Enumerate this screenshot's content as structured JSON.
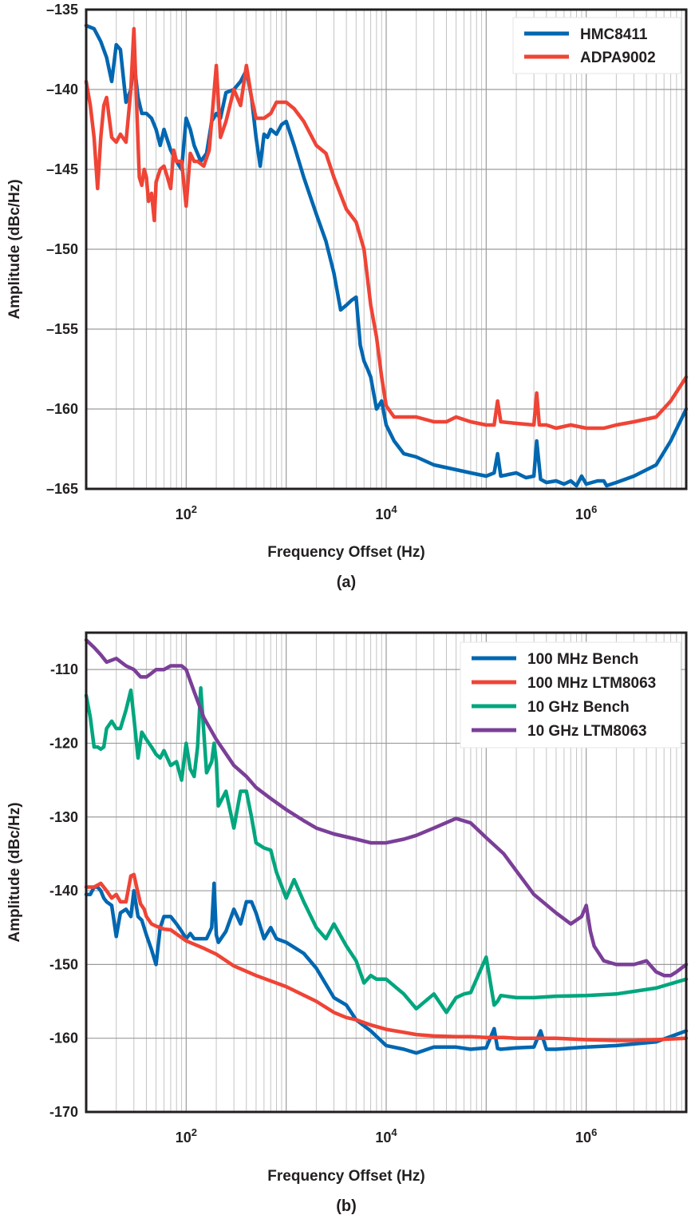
{
  "chart_data": [
    {
      "type": "line",
      "panel_label": "(a)",
      "xlabel": "Frequency Offset (Hz)",
      "ylabel": "Amplitude (dBc/Hz)",
      "xscale": "log",
      "xlim": [
        10,
        10000000
      ],
      "ylim": [
        -165,
        -135
      ],
      "yticks": [
        -135,
        -140,
        -145,
        -150,
        -155,
        -160,
        -165
      ],
      "ytick_labels": [
        "–135",
        "–140",
        "–145",
        "–150",
        "–155",
        "–160",
        "–165"
      ],
      "xticks": [
        {
          "value": 100,
          "base": "10",
          "exp": "2"
        },
        {
          "value": 10000,
          "base": "10",
          "exp": "4"
        },
        {
          "value": 1000000,
          "base": "10",
          "exp": "6"
        }
      ],
      "grid": true,
      "legend_position": "top-right",
      "series": [
        {
          "name": "HMC8411",
          "color": "#0067b1",
          "x": [
            10,
            12,
            14,
            16,
            18,
            20,
            22,
            25,
            28,
            30,
            33,
            36,
            40,
            45,
            50,
            55,
            60,
            70,
            80,
            90,
            100,
            110,
            120,
            140,
            160,
            180,
            200,
            220,
            250,
            300,
            350,
            400,
            450,
            500,
            550,
            600,
            650,
            700,
            800,
            900,
            1000,
            1200,
            1500,
            2000,
            2500,
            3000,
            3500,
            4000,
            4500,
            5000,
            5500,
            6000,
            6500,
            7000,
            8000,
            9000,
            10000,
            12000,
            15000,
            20000,
            30000,
            50000,
            70000,
            100000,
            120000,
            130000,
            140000,
            200000,
            250000,
            300000,
            320000,
            350000,
            400000,
            500000,
            600000,
            700000,
            800000,
            900000,
            1000000,
            1300000,
            1500000,
            1600000,
            2000000,
            3000000,
            5000000,
            7000000,
            10000000
          ],
          "y": [
            -136,
            -136.2,
            -137,
            -138,
            -139.5,
            -137.2,
            -137.5,
            -140.8,
            -140,
            -138.2,
            -140.5,
            -141.5,
            -141.5,
            -141.8,
            -142.5,
            -143.5,
            -142.5,
            -143.8,
            -144.5,
            -145,
            -141.8,
            -142.5,
            -143.5,
            -144.5,
            -144,
            -142,
            -141.5,
            -141.8,
            -140.2,
            -140,
            -139.5,
            -138.8,
            -140.5,
            -143,
            -144.8,
            -142.8,
            -143,
            -142.5,
            -142.8,
            -142.2,
            -142,
            -143.5,
            -145.5,
            -147.8,
            -149.5,
            -151.5,
            -153.8,
            -153.5,
            -153.2,
            -153,
            -156,
            -157,
            -157.5,
            -158,
            -160,
            -159.5,
            -161,
            -162,
            -162.8,
            -163,
            -163.5,
            -163.8,
            -164,
            -164.2,
            -164,
            -162.8,
            -164.2,
            -164,
            -164.3,
            -164.2,
            -162,
            -164.4,
            -164.6,
            -164.5,
            -164.7,
            -164.5,
            -164.8,
            -164.2,
            -164.7,
            -164.5,
            -164.5,
            -164.8,
            -164.6,
            -164.2,
            -163.5,
            -162,
            -160
          ]
        },
        {
          "name": "ADPA9002",
          "color": "#ef4436",
          "x": [
            10,
            11,
            12,
            13,
            14,
            15,
            16,
            18,
            20,
            22,
            25,
            28,
            30,
            32,
            34,
            36,
            38,
            40,
            42,
            45,
            48,
            50,
            55,
            60,
            65,
            70,
            75,
            80,
            90,
            100,
            110,
            120,
            130,
            150,
            170,
            200,
            220,
            250,
            300,
            350,
            400,
            450,
            500,
            600,
            700,
            800,
            1000,
            1200,
            1500,
            2000,
            2500,
            3000,
            4000,
            5000,
            6000,
            7000,
            8000,
            9000,
            10000,
            12000,
            15000,
            20000,
            30000,
            40000,
            50000,
            70000,
            100000,
            120000,
            130000,
            140000,
            200000,
            300000,
            320000,
            340000,
            400000,
            500000,
            700000,
            1000000,
            1500000,
            2000000,
            3000000,
            5000000,
            7000000,
            10000000
          ],
          "y": [
            -139.5,
            -141,
            -143,
            -146.2,
            -143,
            -141,
            -140.5,
            -143,
            -143.3,
            -142.8,
            -143.3,
            -140,
            -136.2,
            -141,
            -145.5,
            -146,
            -145,
            -145.5,
            -147,
            -146.5,
            -148.2,
            -145.8,
            -145,
            -144.8,
            -145.5,
            -146.2,
            -143.8,
            -144.5,
            -144.5,
            -147.3,
            -144,
            -144.5,
            -144.5,
            -144.8,
            -143.8,
            -138.5,
            -143,
            -142,
            -140,
            -141,
            -138.5,
            -140.5,
            -141.8,
            -141.8,
            -141.5,
            -140.8,
            -140.8,
            -141.2,
            -142,
            -143.5,
            -144,
            -145.5,
            -147.5,
            -148.3,
            -150,
            -153.5,
            -155.5,
            -158,
            -159.8,
            -160.5,
            -160.5,
            -160.5,
            -160.8,
            -160.8,
            -160.5,
            -160.8,
            -161,
            -161,
            -159.5,
            -160.8,
            -160.9,
            -161,
            -159,
            -161,
            -161,
            -161.2,
            -161,
            -161.2,
            -161.2,
            -161,
            -160.8,
            -160.5,
            -159.5,
            -158
          ]
        }
      ]
    },
    {
      "type": "line",
      "panel_label": "(b)",
      "xlabel": "Frequency Offset (Hz)",
      "ylabel": "Amplitude (dBc/Hz)",
      "xscale": "log",
      "xlim": [
        10,
        10000000
      ],
      "ylim": [
        -170,
        -105
      ],
      "yticks": [
        -110,
        -120,
        -130,
        -140,
        -150,
        -160,
        -170
      ],
      "ytick_labels": [
        "-110",
        "-120",
        "-130",
        "-140",
        "-150",
        "-160",
        "-170"
      ],
      "xticks": [
        {
          "value": 100,
          "base": "10",
          "exp": "2"
        },
        {
          "value": 10000,
          "base": "10",
          "exp": "4"
        },
        {
          "value": 1000000,
          "base": "10",
          "exp": "6"
        }
      ],
      "grid": true,
      "legend_position": "top-right",
      "series": [
        {
          "name": "100 MHz Bench",
          "color": "#0067b1",
          "x": [
            10,
            11,
            12,
            13,
            14,
            15,
            16,
            18,
            20,
            22,
            25,
            28,
            30,
            33,
            36,
            40,
            45,
            50,
            55,
            60,
            70,
            80,
            90,
            100,
            110,
            120,
            140,
            160,
            180,
            190,
            200,
            210,
            250,
            300,
            350,
            400,
            450,
            500,
            600,
            700,
            800,
            1000,
            1500,
            2000,
            3000,
            4000,
            5000,
            7000,
            10000,
            15000,
            20000,
            30000,
            50000,
            70000,
            100000,
            120000,
            130000,
            140000,
            200000,
            300000,
            350000,
            400000,
            500000,
            1000000,
            2000000,
            5000000,
            10000000
          ],
          "y": [
            -140.5,
            -140.5,
            -139.5,
            -139.5,
            -140,
            -141,
            -141.5,
            -142,
            -146.2,
            -143,
            -142.5,
            -143.5,
            -140,
            -143.5,
            -144,
            -146,
            -148,
            -150,
            -145,
            -143.5,
            -143.5,
            -144.5,
            -145.5,
            -146.5,
            -145.8,
            -146.5,
            -146.5,
            -146.5,
            -145,
            -139,
            -146,
            -147,
            -145.5,
            -142.5,
            -144.5,
            -141.5,
            -141.5,
            -143,
            -146.5,
            -145,
            -146.5,
            -147,
            -148.5,
            -150.5,
            -154.5,
            -155.5,
            -157.5,
            -159,
            -161,
            -161.5,
            -162,
            -161.2,
            -161.2,
            -161.5,
            -161.3,
            -158.7,
            -161.4,
            -161.5,
            -161.3,
            -161.2,
            -159,
            -161.5,
            -161.5,
            -161.2,
            -161,
            -160.5,
            -159
          ]
        },
        {
          "name": "100 MHz LTM8063",
          "color": "#ef4436",
          "x": [
            10,
            12,
            14,
            16,
            18,
            20,
            22,
            25,
            28,
            30,
            32,
            35,
            38,
            40,
            45,
            50,
            60,
            70,
            100,
            150,
            200,
            300,
            500,
            1000,
            2000,
            3000,
            4000,
            5000,
            7000,
            10000,
            15000,
            20000,
            30000,
            50000,
            70000,
            100000,
            150000,
            200000,
            500000,
            1000000,
            2000000,
            3000000,
            5000000,
            10000000
          ],
          "y": [
            -139.5,
            -139.5,
            -139,
            -140,
            -141,
            -140.5,
            -141.5,
            -141.5,
            -138,
            -137.8,
            -139.5,
            -141.8,
            -142.5,
            -143.5,
            -144.5,
            -144.8,
            -145.2,
            -145.3,
            -146.8,
            -147.8,
            -148.6,
            -150.2,
            -151.5,
            -153,
            -155,
            -156.5,
            -157.2,
            -157.5,
            -158.2,
            -158.8,
            -159.2,
            -159.5,
            -159.7,
            -159.8,
            -159.8,
            -159.9,
            -159.9,
            -160,
            -160,
            -160.2,
            -160.3,
            -160.3,
            -160.2,
            -160
          ]
        },
        {
          "name": "10 GHz Bench",
          "color": "#00a67e",
          "x": [
            10,
            11,
            12,
            13,
            14,
            15,
            16,
            18,
            20,
            22,
            25,
            28,
            30,
            33,
            36,
            40,
            45,
            50,
            55,
            60,
            70,
            80,
            90,
            100,
            110,
            120,
            130,
            140,
            160,
            180,
            190,
            200,
            210,
            250,
            300,
            350,
            400,
            450,
            500,
            600,
            700,
            800,
            1000,
            1200,
            1500,
            2000,
            2500,
            3000,
            4000,
            5000,
            6000,
            7000,
            8000,
            10000,
            15000,
            20000,
            30000,
            40000,
            50000,
            60000,
            70000,
            100000,
            120000,
            130000,
            140000,
            200000,
            300000,
            500000,
            1000000,
            2000000,
            5000000,
            10000000
          ],
          "y": [
            -113.5,
            -116.5,
            -120.5,
            -120.5,
            -120.8,
            -120.5,
            -118,
            -117,
            -118,
            -118,
            -115.5,
            -112.8,
            -116.5,
            -122,
            -118.5,
            -119.5,
            -120.5,
            -121.5,
            -122,
            -121,
            -123,
            -122.5,
            -125,
            -120,
            -123.5,
            -124.5,
            -120.5,
            -112.5,
            -124,
            -122.5,
            -120,
            -122.5,
            -128.5,
            -126.5,
            -131.5,
            -126.5,
            -126.5,
            -130,
            -133.5,
            -134.2,
            -134.5,
            -137.5,
            -141,
            -138.5,
            -141.5,
            -145,
            -146.5,
            -144.5,
            -147.5,
            -149.5,
            -152.5,
            -151.5,
            -152,
            -152,
            -154,
            -156,
            -154,
            -156.5,
            -154.5,
            -154,
            -153.8,
            -149,
            -155.5,
            -155,
            -154.2,
            -154.5,
            -154.5,
            -154.3,
            -154.2,
            -154,
            -153.2,
            -152
          ]
        },
        {
          "name": "10 GHz LTM8063",
          "color": "#7b3f98",
          "x": [
            10,
            12,
            14,
            16,
            20,
            25,
            30,
            35,
            40,
            45,
            50,
            60,
            70,
            80,
            90,
            100,
            120,
            150,
            200,
            300,
            400,
            500,
            700,
            1000,
            1500,
            2000,
            3000,
            5000,
            7000,
            10000,
            15000,
            20000,
            30000,
            50000,
            70000,
            100000,
            150000,
            200000,
            300000,
            500000,
            700000,
            900000,
            1000000,
            1100000,
            1200000,
            1500000,
            2000000,
            3000000,
            4000000,
            5000000,
            6000000,
            7000000,
            8000000,
            10000000
          ],
          "y": [
            -106,
            -107,
            -108,
            -109,
            -108.5,
            -109.5,
            -110,
            -111,
            -111,
            -110.5,
            -110,
            -110,
            -109.5,
            -109.5,
            -109.5,
            -110,
            -113,
            -116.5,
            -119.5,
            -123,
            -124.5,
            -126,
            -127.5,
            -129,
            -130.5,
            -131.5,
            -132.3,
            -133,
            -133.5,
            -133.5,
            -133,
            -132.5,
            -131.5,
            -130.2,
            -130.8,
            -132.8,
            -135,
            -137.3,
            -140.5,
            -143,
            -144.5,
            -143.5,
            -142,
            -145.5,
            -147.5,
            -149.5,
            -150,
            -150,
            -149.5,
            -151,
            -151.5,
            -151.5,
            -151,
            -150
          ]
        }
      ]
    }
  ]
}
